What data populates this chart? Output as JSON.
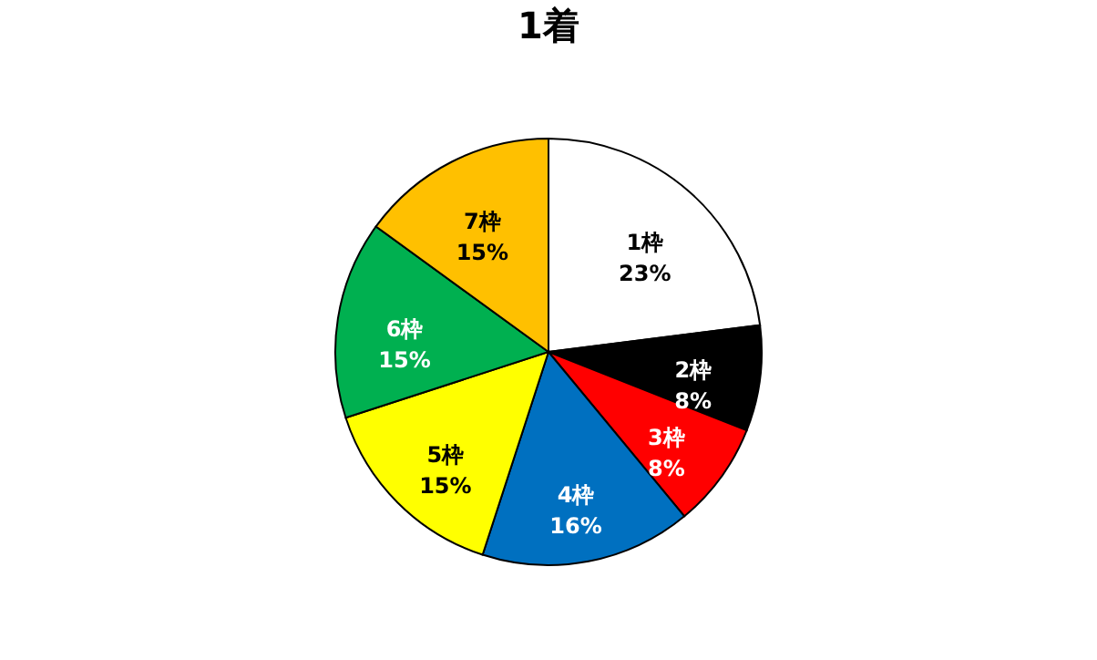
{
  "chart_data": {
    "type": "pie",
    "title": "1着",
    "categories": [
      "1枠",
      "2枠",
      "3枠",
      "4枠",
      "5枠",
      "6枠",
      "7枠"
    ],
    "values": [
      23,
      8,
      8,
      16,
      15,
      15,
      15
    ],
    "colors": [
      "#ffffff",
      "#000000",
      "#ff0000",
      "#0070c0",
      "#ffff00",
      "#00b050",
      "#ffc000"
    ],
    "value_labels": [
      "23%",
      "8%",
      "8%",
      "16%",
      "15%",
      "15%",
      "15%"
    ],
    "legend": false
  }
}
